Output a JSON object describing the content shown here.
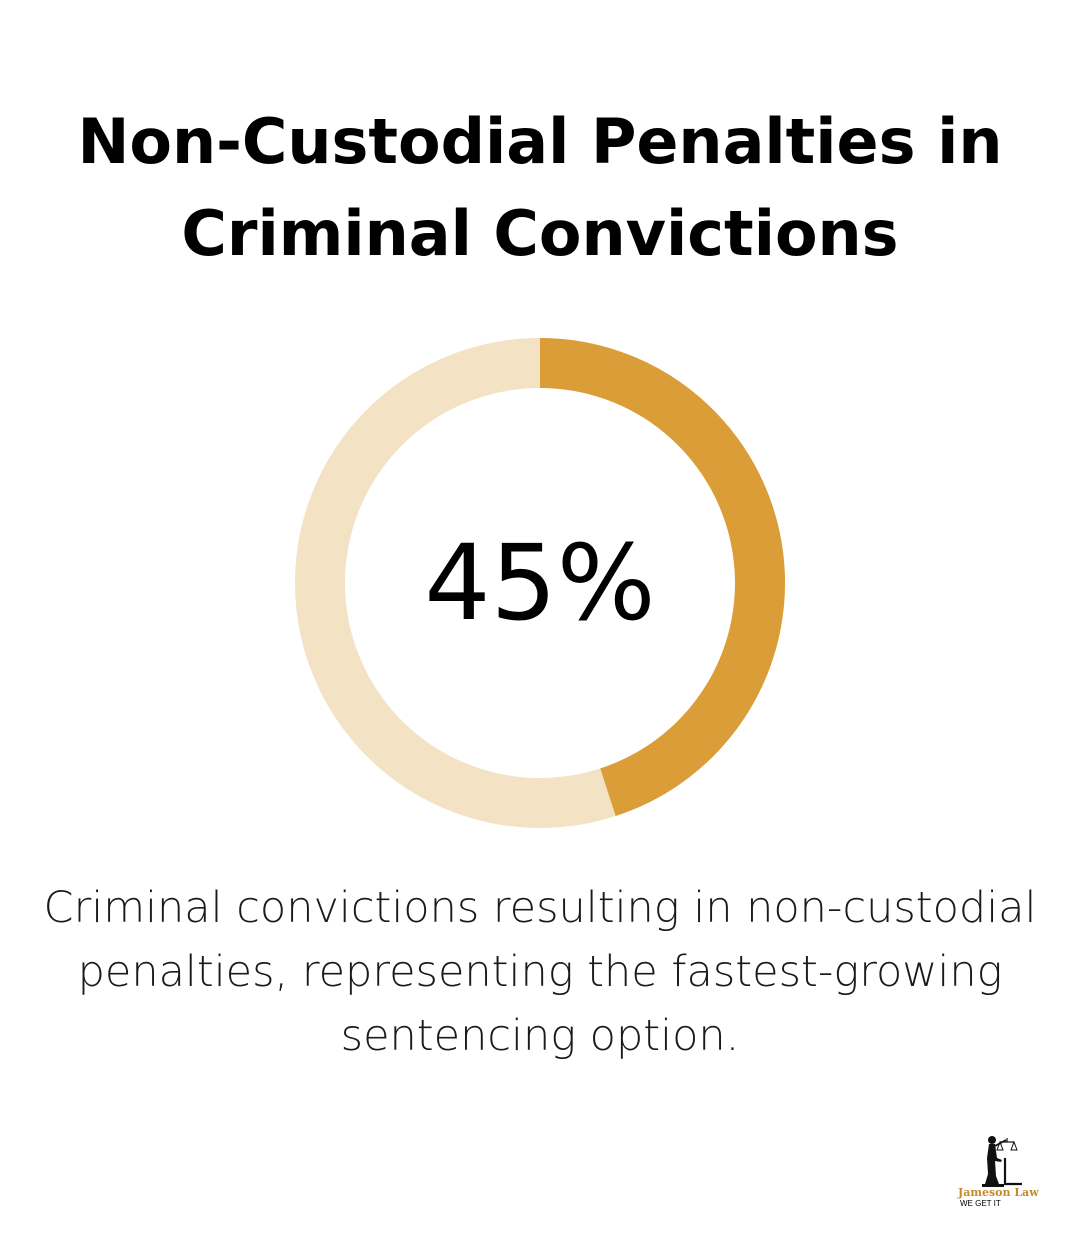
{
  "title": "Non-Custodial Penalties in Criminal Convictions",
  "chart_data": {
    "type": "pie",
    "value": 45,
    "value_label": "45%",
    "caption": "Criminal convictions resulting in non-custodial penalties, representing the fastest-growing sentencing option.",
    "colors": {
      "filled": "#DA9D37",
      "remainder": "#F3E2C3"
    }
  },
  "logo": {
    "name": "Jameson Law",
    "tagline": "WE GET IT",
    "name_color": "#C68A2C",
    "icon": "lady-justice-icon"
  }
}
